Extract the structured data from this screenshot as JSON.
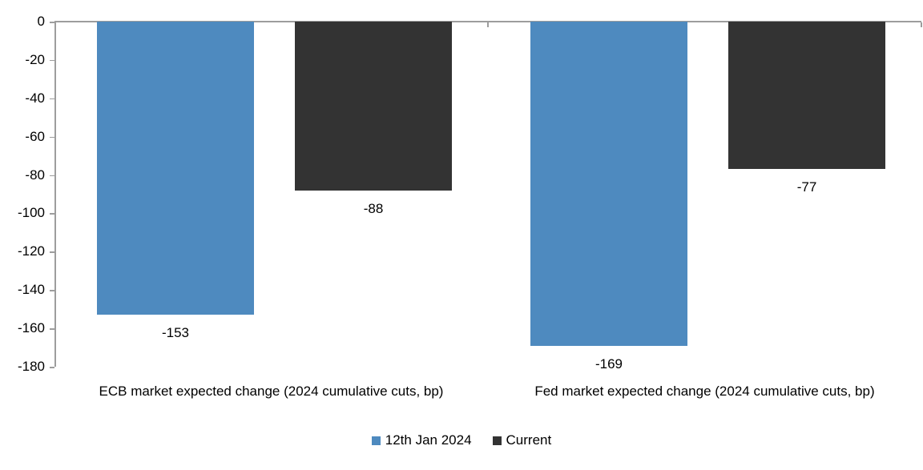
{
  "chart_data": {
    "type": "bar",
    "title": "",
    "categories": [
      "ECB market expected change (2024 cumulative cuts, bp)",
      "Fed market expected change (2024 cumulative cuts, bp)"
    ],
    "series": [
      {
        "name": "12th Jan 2024",
        "color": "#4E8ABF",
        "values": [
          -153,
          -169
        ]
      },
      {
        "name": "Current",
        "color": "#333333",
        "values": [
          -88,
          -77
        ]
      }
    ],
    "ylim": [
      -180,
      0
    ],
    "y_ticks": [
      0,
      -20,
      -40,
      -60,
      -80,
      -100,
      -120,
      -140,
      -160,
      -180
    ],
    "grid": false,
    "data_labels": true,
    "legend_position": "bottom",
    "axis_color": "#9D9D9D",
    "text_color": "#000000",
    "background": "#FFFFFF"
  }
}
